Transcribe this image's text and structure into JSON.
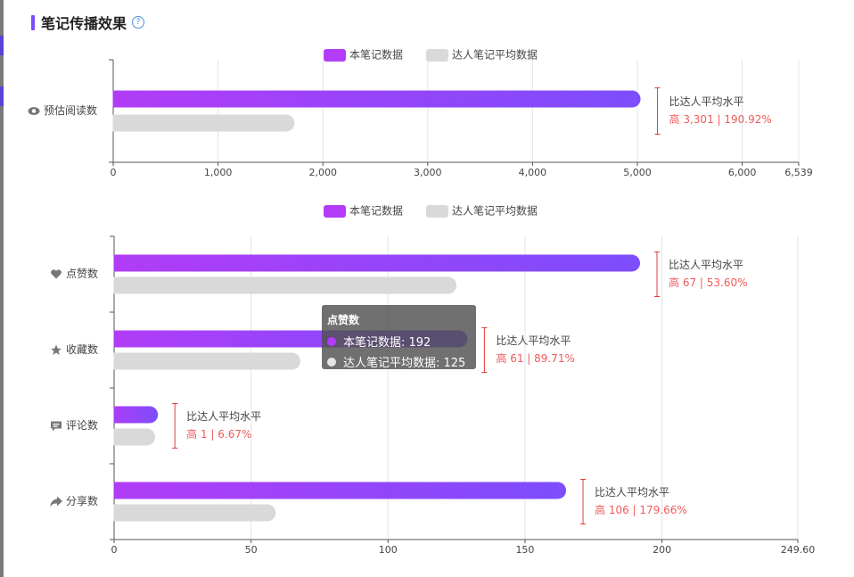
{
  "section": {
    "title": "笔记传播效果",
    "help_icon": "question-circle-icon"
  },
  "colors": {
    "primary_start": "#b23cf7",
    "primary_end": "#7d4dfc",
    "average": "#d9d9d9",
    "compare_text": "#f05a5a",
    "bracket": "#e03c3c",
    "grid": "#e3e3e3",
    "axis": "#555555",
    "label_text": "#444444",
    "tooltip_bg": "#505050"
  },
  "chart_data": [
    {
      "type": "bar",
      "orientation": "horizontal",
      "legend": [
        "本笔记数据",
        "达人笔记平均数据"
      ],
      "legend_position": "top-center",
      "categories": [
        "预估阅读数"
      ],
      "category_icons": [
        "eye-icon"
      ],
      "series": [
        {
          "name": "本笔记数据",
          "values": [
            5030
          ]
        },
        {
          "name": "达人笔记平均数据",
          "values": [
            1729
          ]
        }
      ],
      "annotations": [
        {
          "label": "比达人平均水平",
          "value": "高 3,301 | 190.92%"
        }
      ],
      "xlim": [
        0,
        6539
      ],
      "xticks": [
        0,
        1000,
        2000,
        3000,
        4000,
        5000,
        6000,
        6539
      ],
      "xtick_labels": [
        "0",
        "1,000",
        "2,000",
        "3,000",
        "4,000",
        "5,000",
        "6,000",
        "6,539"
      ],
      "grid": true
    },
    {
      "type": "bar",
      "orientation": "horizontal",
      "legend": [
        "本笔记数据",
        "达人笔记平均数据"
      ],
      "legend_position": "top-center",
      "categories": [
        "点赞数",
        "收藏数",
        "评论数",
        "分享数"
      ],
      "category_icons": [
        "heart-icon",
        "star-icon",
        "comment-icon",
        "share-icon"
      ],
      "series": [
        {
          "name": "本笔记数据",
          "values": [
            192,
            129,
            16,
            165
          ]
        },
        {
          "name": "达人笔记平均数据",
          "values": [
            125,
            68,
            15,
            59
          ]
        }
      ],
      "annotations": [
        {
          "label": "比达人平均水平",
          "value": "高 67 | 53.60%"
        },
        {
          "label": "比达人平均水平",
          "value": "高 61 | 89.71%"
        },
        {
          "label": "比达人平均水平",
          "value": "高 1 | 6.67%"
        },
        {
          "label": "比达人平均水平",
          "value": "高 106 | 179.66%"
        }
      ],
      "xlim": [
        0,
        249.6
      ],
      "xticks": [
        0,
        50,
        100,
        150,
        200,
        249.6
      ],
      "xtick_labels": [
        "0",
        "50",
        "100",
        "150",
        "200",
        "249.60"
      ],
      "grid": true
    }
  ],
  "tooltip": {
    "title": "点赞数",
    "rows": [
      {
        "label": "本笔记数据: 192",
        "color": "#b23cf7"
      },
      {
        "label": "达人笔记平均数据: 125",
        "color": "#d9d9d9"
      }
    ]
  }
}
